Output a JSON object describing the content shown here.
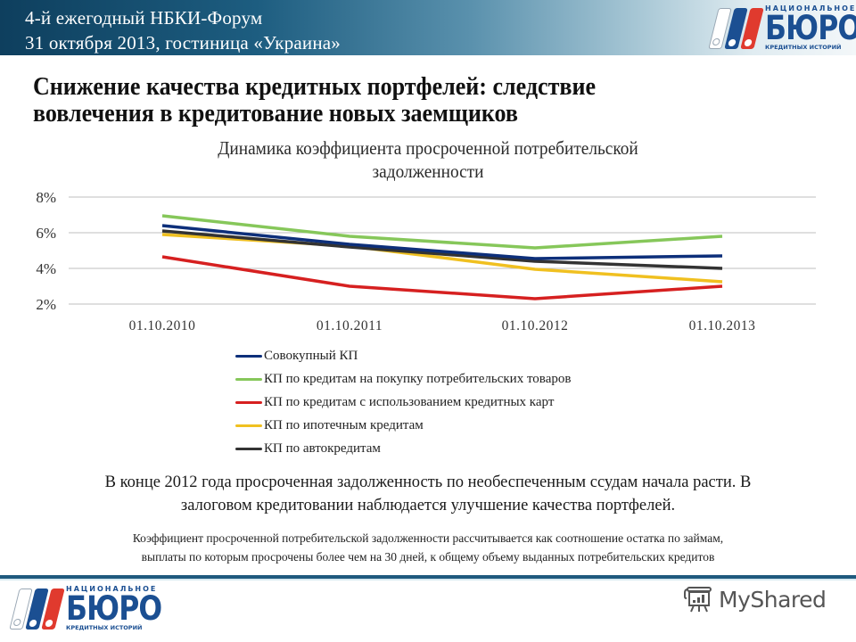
{
  "header": {
    "line1": "4-й ежегодный  НБКИ-Форум",
    "line2": "31 октября 2013, гостиница «Украина»"
  },
  "logo": {
    "top_text": "НАЦИОНАЛЬНОЕ",
    "main_text": "БЮРО",
    "bottom_text": "КРЕДИТНЫХ ИСТОРИЙ",
    "colors": {
      "white_bar": "#ffffff",
      "blue_bar": "#1b4f92",
      "red_bar": "#e03a2e"
    }
  },
  "slide": {
    "title_line1": "Снижение качества кредитных портфелей: следствие",
    "title_line2": "вовлечения  в кредитование новых заемщиков",
    "summary_line1": "В конце 2012 года просроченная задолженность по необеспеченным ссудам начала расти. В",
    "summary_line2": "залоговом  кредитовании наблюдается улучшение качества портфелей.",
    "footnote_line1": "Коэффициент просроченной потребительской задолженности рассчитывается как соотношение остатка по займам,",
    "footnote_line2": "выплаты по которым просрочены  более чем на 30 дней, к общему объему выданных потребительских кредитов"
  },
  "chart_data": {
    "type": "line",
    "title": "Динамика коэффициента просроченной потребительской задолженности",
    "title_line1": "Динамика коэффициента просроченной потребительской",
    "title_line2": "задолженности",
    "xlabel": "",
    "ylabel": "",
    "categories": [
      "01.10.2010",
      "01.10.2011",
      "01.10.2012",
      "01.10.2013"
    ],
    "y_ticks": [
      "2%",
      "4%",
      "6%",
      "8%"
    ],
    "ylim": [
      2,
      8
    ],
    "grid": true,
    "legend_position": "bottom",
    "series": [
      {
        "name": "Совокупный КП",
        "color": "#0d2f7a",
        "values": [
          6.4,
          5.35,
          4.55,
          4.7
        ]
      },
      {
        "name": "КП по кредитам на покупку потребительских товаров",
        "color": "#86c75a",
        "values": [
          6.95,
          5.8,
          5.15,
          5.8
        ]
      },
      {
        "name": "КП по кредитам с использованием кредитных карт",
        "color": "#d62020",
        "values": [
          4.65,
          3.0,
          2.3,
          3.0
        ]
      },
      {
        "name": "КП по ипотечным кредитам",
        "color": "#f0c020",
        "values": [
          5.9,
          5.25,
          3.95,
          3.25
        ]
      },
      {
        "name": "КП по автокредитам",
        "color": "#333333",
        "values": [
          6.1,
          5.2,
          4.4,
          4.0
        ]
      }
    ]
  },
  "footer": {
    "watermark": "MyShared"
  },
  "theme": {
    "header_dark": "#0e3f5e",
    "footer_rule": "#1f5a7e",
    "gridline": "#bfbfbf"
  }
}
